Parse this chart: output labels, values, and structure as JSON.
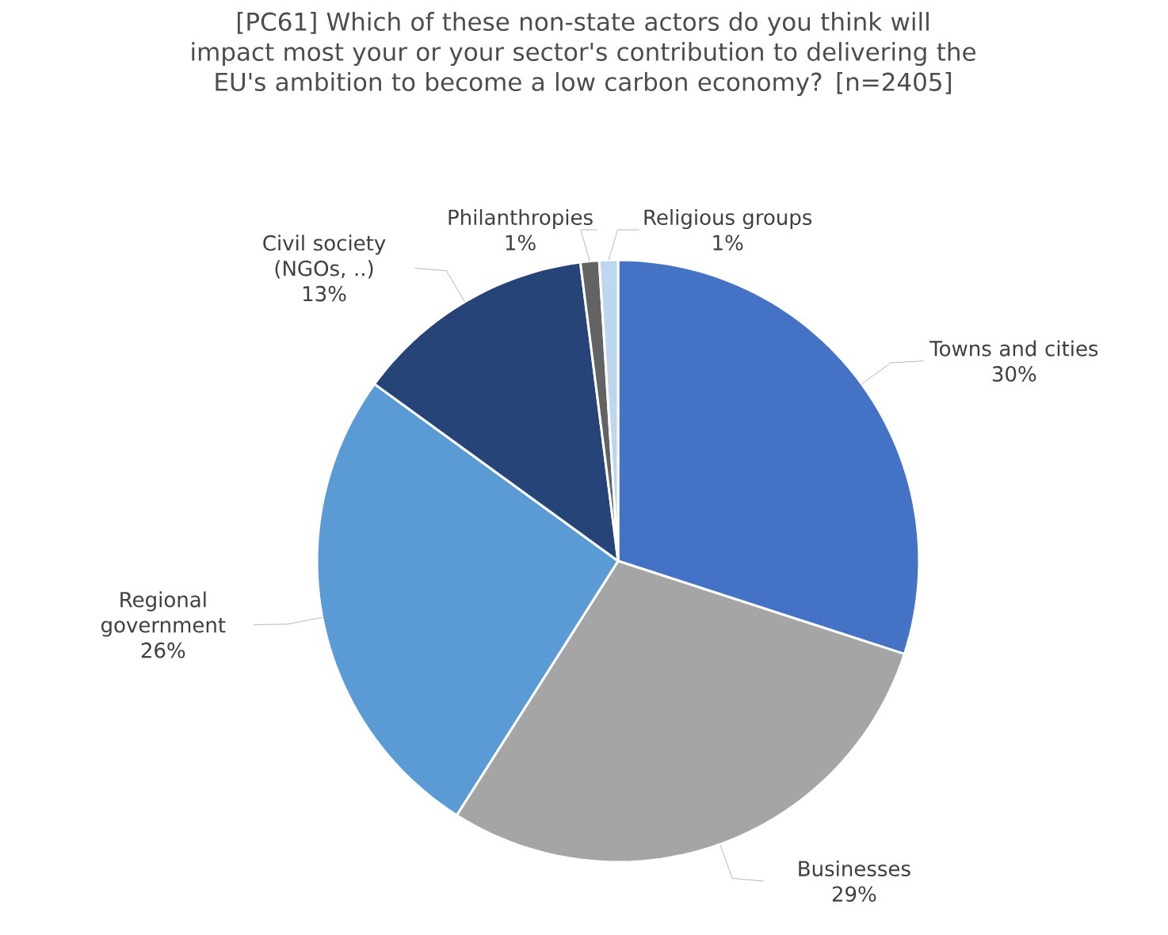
{
  "chart_data": {
    "type": "pie",
    "title": "[PC61] Which of these non-state actors do you think will impact most your or your sector's contribution to delivering the EU's ambition to become a low carbon economy? [n=2405]",
    "categories": [
      "Towns and cities",
      "Businesses",
      "Regional government",
      "Civil society (NGOs, ..)",
      "Philanthropies",
      "Religious groups"
    ],
    "values": [
      30,
      29,
      26,
      13,
      1,
      1
    ],
    "value_labels": [
      "30%",
      "29%",
      "26%",
      "13%",
      "1%",
      "1%"
    ],
    "colors": [
      "#4472c4",
      "#a5a5a5",
      "#5b9bd5",
      "#264478",
      "#636363",
      "#bdd7ee"
    ]
  }
}
